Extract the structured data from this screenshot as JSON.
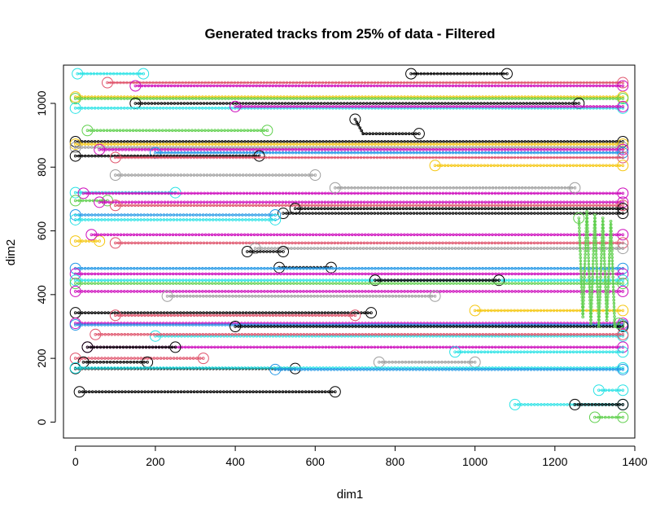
{
  "chart_data": {
    "type": "line",
    "title": "Generated tracks from 25% of data - Filtered",
    "xlabel": "dim1",
    "ylabel": "dim2",
    "xlim": [
      -30,
      1400
    ],
    "ylim": [
      -50,
      1120
    ],
    "x_ticks": [
      0,
      200,
      400,
      600,
      800,
      1000,
      1200,
      1400
    ],
    "y_ticks": [
      0,
      200,
      400,
      600,
      800,
      1000
    ],
    "legend": "none",
    "palette": [
      "#000000",
      "#DF536B",
      "#61D04F",
      "#2297E6",
      "#28E2E5",
      "#CD0BBC",
      "#F5C710",
      "#9E9E9E"
    ],
    "series": [
      {
        "color": "#28E2E5",
        "x": [
          5,
          170
        ],
        "y": [
          1093,
          1093
        ]
      },
      {
        "color": "#DF536B",
        "x": [
          80,
          1370
        ],
        "y": [
          1065,
          1065
        ]
      },
      {
        "color": "#CD0BBC",
        "x": [
          150,
          1370
        ],
        "y": [
          1055,
          1055
        ]
      },
      {
        "color": "#F5C710",
        "x": [
          0,
          1370
        ],
        "y": [
          1020,
          1020
        ]
      },
      {
        "color": "#61D04F",
        "x": [
          0,
          1370
        ],
        "y": [
          1015,
          1015
        ]
      },
      {
        "color": "#000000",
        "x": [
          150,
          1260
        ],
        "y": [
          1000,
          1000
        ]
      },
      {
        "color": "#28E2E5",
        "x": [
          0,
          1370
        ],
        "y": [
          985,
          985
        ]
      },
      {
        "color": "#CD0BBC",
        "x": [
          400,
          1370
        ],
        "y": [
          990,
          990
        ]
      },
      {
        "color": "#000000",
        "x": [
          840,
          1080
        ],
        "y": [
          1093,
          1093
        ]
      },
      {
        "color": "#000000",
        "x": [
          700,
          720,
          860
        ],
        "y": [
          950,
          905,
          905
        ]
      },
      {
        "color": "#61D04F",
        "x": [
          30,
          480
        ],
        "y": [
          915,
          915
        ]
      },
      {
        "color": "#000000",
        "x": [
          0,
          1370
        ],
        "y": [
          880,
          880
        ]
      },
      {
        "color": "#F5C710",
        "x": [
          0,
          1370
        ],
        "y": [
          872,
          872
        ]
      },
      {
        "color": "#9E9E9E",
        "x": [
          0,
          1370
        ],
        "y": [
          862,
          862
        ]
      },
      {
        "color": "#CD0BBC",
        "x": [
          60,
          1370
        ],
        "y": [
          855,
          855
        ]
      },
      {
        "color": "#2297E6",
        "x": [
          200,
          1370
        ],
        "y": [
          845,
          845
        ]
      },
      {
        "color": "#000000",
        "x": [
          0,
          460
        ],
        "y": [
          835,
          835
        ]
      },
      {
        "color": "#DF536B",
        "x": [
          100,
          1370
        ],
        "y": [
          830,
          830
        ]
      },
      {
        "color": "#F5C710",
        "x": [
          900,
          1370
        ],
        "y": [
          805,
          805
        ]
      },
      {
        "color": "#9E9E9E",
        "x": [
          100,
          600
        ],
        "y": [
          775,
          775
        ]
      },
      {
        "color": "#28E2E5",
        "x": [
          0,
          250
        ],
        "y": [
          720,
          720
        ]
      },
      {
        "color": "#CD0BBC",
        "x": [
          20,
          1370
        ],
        "y": [
          718,
          718
        ]
      },
      {
        "color": "#9E9E9E",
        "x": [
          650,
          1250
        ],
        "y": [
          735,
          735
        ]
      },
      {
        "color": "#61D04F",
        "x": [
          0,
          80
        ],
        "y": [
          695,
          695
        ]
      },
      {
        "color": "#CD0BBC",
        "x": [
          60,
          1370
        ],
        "y": [
          690,
          690
        ]
      },
      {
        "color": "#DF536B",
        "x": [
          100,
          1370
        ],
        "y": [
          680,
          680
        ]
      },
      {
        "color": "#000000",
        "x": [
          550,
          1370
        ],
        "y": [
          670,
          670
        ]
      },
      {
        "color": "#000000",
        "x": [
          520,
          1370
        ],
        "y": [
          655,
          655
        ]
      },
      {
        "color": "#2297E6",
        "x": [
          0,
          500
        ],
        "y": [
          650,
          650
        ]
      },
      {
        "color": "#28E2E5",
        "x": [
          0,
          500
        ],
        "y": [
          635,
          635
        ]
      },
      {
        "color": "#F5C710",
        "x": [
          0,
          60
        ],
        "y": [
          568,
          568
        ]
      },
      {
        "color": "#CD0BBC",
        "x": [
          40,
          1370
        ],
        "y": [
          588,
          588
        ]
      },
      {
        "color": "#DF536B",
        "x": [
          100,
          1370
        ],
        "y": [
          562,
          562
        ]
      },
      {
        "color": "#9E9E9E",
        "x": [
          450,
          1370
        ],
        "y": [
          545,
          545
        ]
      },
      {
        "color": "#000000",
        "x": [
          430,
          520
        ],
        "y": [
          535,
          535
        ]
      },
      {
        "color": "#000000",
        "x": [
          510,
          640
        ],
        "y": [
          485,
          485
        ]
      },
      {
        "color": "#2297E6",
        "x": [
          0,
          1370
        ],
        "y": [
          482,
          482
        ]
      },
      {
        "color": "#CD0BBC",
        "x": [
          0,
          1370
        ],
        "y": [
          465,
          465
        ]
      },
      {
        "color": "#28E2E5",
        "x": [
          0,
          1370
        ],
        "y": [
          445,
          445
        ]
      },
      {
        "color": "#000000",
        "x": [
          750,
          1060
        ],
        "y": [
          445,
          445
        ]
      },
      {
        "color": "#61D04F",
        "x": [
          0,
          1370
        ],
        "y": [
          435,
          435
        ]
      },
      {
        "color": "#CD0BBC",
        "x": [
          0,
          1370
        ],
        "y": [
          410,
          410
        ]
      },
      {
        "color": "#9E9E9E",
        "x": [
          230,
          900
        ],
        "y": [
          395,
          395
        ]
      },
      {
        "color": "#F5C710",
        "x": [
          1000,
          1370
        ],
        "y": [
          350,
          350
        ]
      },
      {
        "color": "#000000",
        "x": [
          0,
          740
        ],
        "y": [
          343,
          343
        ]
      },
      {
        "color": "#DF536B",
        "x": [
          100,
          700
        ],
        "y": [
          335,
          335
        ]
      },
      {
        "color": "#CD0BBC",
        "x": [
          0,
          1370
        ],
        "y": [
          310,
          310
        ]
      },
      {
        "color": "#2297E6",
        "x": [
          0,
          1370
        ],
        "y": [
          305,
          305
        ]
      },
      {
        "color": "#000000",
        "x": [
          400,
          1370
        ],
        "y": [
          300,
          300
        ]
      },
      {
        "color": "#28E2E5",
        "x": [
          200,
          1370
        ],
        "y": [
          270,
          270
        ]
      },
      {
        "color": "#DF536B",
        "x": [
          50,
          1370
        ],
        "y": [
          275,
          275
        ]
      },
      {
        "color": "#CD0BBC",
        "x": [
          30,
          1370
        ],
        "y": [
          235,
          235
        ]
      },
      {
        "color": "#000000",
        "x": [
          30,
          250
        ],
        "y": [
          235,
          235
        ]
      },
      {
        "color": "#28E2E5",
        "x": [
          950,
          1370
        ],
        "y": [
          220,
          220
        ]
      },
      {
        "color": "#DF536B",
        "x": [
          0,
          320
        ],
        "y": [
          200,
          200
        ]
      },
      {
        "color": "#000000",
        "x": [
          20,
          180
        ],
        "y": [
          188,
          188
        ]
      },
      {
        "color": "#9E9E9E",
        "x": [
          760,
          1000
        ],
        "y": [
          188,
          188
        ]
      },
      {
        "color": "#000000",
        "x": [
          0,
          550
        ],
        "y": [
          168,
          168
        ]
      },
      {
        "color": "#28E2E5",
        "x": [
          0,
          1370
        ],
        "y": [
          170,
          170
        ]
      },
      {
        "color": "#2297E6",
        "x": [
          500,
          1370
        ],
        "y": [
          165,
          165
        ]
      },
      {
        "color": "#000000",
        "x": [
          10,
          650
        ],
        "y": [
          95,
          95
        ]
      },
      {
        "color": "#28E2E5",
        "x": [
          1310,
          1370
        ],
        "y": [
          100,
          100
        ]
      },
      {
        "color": "#28E2E5",
        "x": [
          1100,
          1370
        ],
        "y": [
          55,
          55
        ]
      },
      {
        "color": "#000000",
        "x": [
          1250,
          1370
        ],
        "y": [
          55,
          55
        ]
      },
      {
        "color": "#61D04F",
        "x": [
          1300,
          1370
        ],
        "y": [
          15,
          15
        ]
      },
      {
        "color": "#61D04F",
        "x": [
          1260,
          1270,
          1280,
          1290,
          1300,
          1310,
          1320,
          1330,
          1340,
          1350,
          1360
        ],
        "y": [
          640,
          330,
          660,
          310,
          650,
          300,
          640,
          320,
          630,
          300,
          310
        ]
      }
    ]
  }
}
